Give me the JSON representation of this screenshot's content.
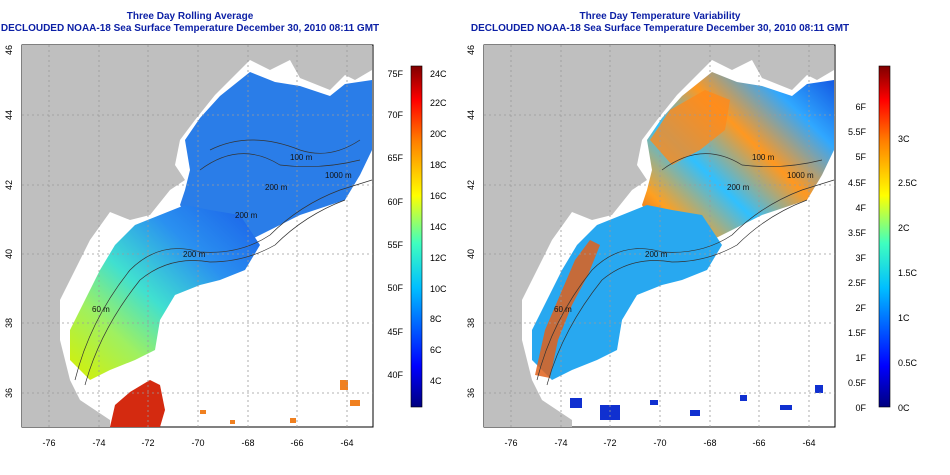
{
  "panels": [
    {
      "title": "Three Day Rolling Average",
      "subtitle": "DECLOUDED NOAA-18 Sea Surface Temperature December 30, 2010 08:11 GMT",
      "colorbar_left_ticks": [
        "75F",
        "70F",
        "65F",
        "60F",
        "55F",
        "50F",
        "45F",
        "40F"
      ],
      "colorbar_right_ticks": [
        "24C",
        "22C",
        "20C",
        "18C",
        "16C",
        "14C",
        "12C",
        "10C",
        "8C",
        "6C",
        "4C"
      ],
      "contour_labels": [
        "200 m",
        "200 m",
        "100 m",
        "1000 m",
        "200 m",
        "60 m"
      ]
    },
    {
      "title": "Three Day Temperature Variability",
      "subtitle": "DECLOUDED NOAA-18 Sea Surface Temperature December 30, 2010 08:11 GMT",
      "colorbar_left_ticks": [],
      "colorbar_right_ticks": [],
      "colorbar_left_ticks_var": [
        "6F",
        "5.5F",
        "5F",
        "4.5F",
        "4F",
        "3.5F",
        "3F",
        "2.5F",
        "2F",
        "1.5F",
        "1F",
        "0.5F",
        "0F"
      ],
      "colorbar_right_ticks_var": [
        "3C",
        "2.5C",
        "2C",
        "1.5C",
        "1C",
        "0.5C",
        "0C"
      ],
      "contour_labels": [
        "200 m",
        "100 m",
        "1000 m",
        "200 m",
        "60 m"
      ]
    }
  ],
  "axes": {
    "lon_ticks": [
      "-76",
      "-74",
      "-72",
      "-70",
      "-68",
      "-66",
      "-64"
    ],
    "lat_ticks": [
      "36",
      "38",
      "40",
      "42",
      "44",
      "46"
    ]
  },
  "colors": {
    "title": "#0b1fa5",
    "land": "#bfbfbf",
    "colormap": [
      "#00007f",
      "#0000ff",
      "#007fff",
      "#00ffff",
      "#7fff7f",
      "#ffff00",
      "#ff7f00",
      "#ff0000",
      "#7f0000"
    ]
  }
}
